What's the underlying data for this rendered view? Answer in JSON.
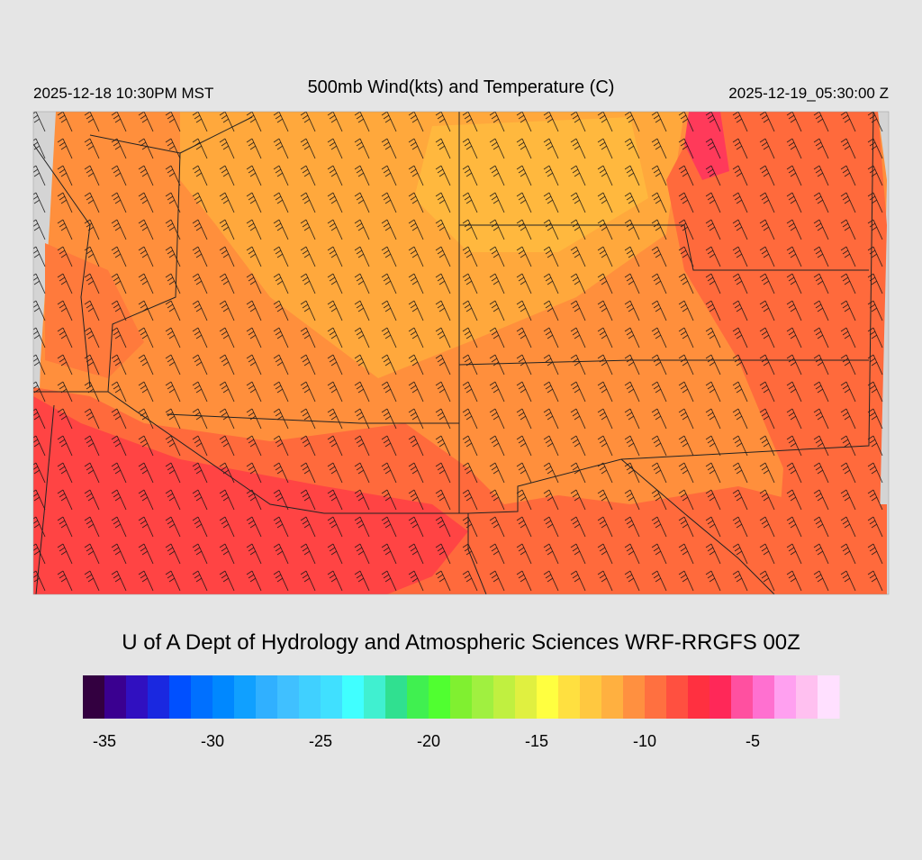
{
  "header": {
    "valid_local": "2025-12-18 10:30PM MST",
    "title": "500mb Wind(kts) and Temperature (C)",
    "valid_utc": "2025-12-19_05:30:00 Z"
  },
  "credit": "U of A Dept of Hydrology and Atmospheric Sciences WRF-RRGFS 00Z",
  "colorbar": {
    "lim": [
      -36,
      -1
    ],
    "ticks": [
      -35,
      -30,
      -25,
      -20,
      -15,
      -10,
      -5
    ],
    "colors": [
      "#330040",
      "#3a0090",
      "#3010c0",
      "#1a28e0",
      "#0050ff",
      "#0070ff",
      "#0088ff",
      "#10a0ff",
      "#30b0ff",
      "#40c0ff",
      "#40d0ff",
      "#40e0ff",
      "#40ffff",
      "#40f0d0",
      "#30e090",
      "#40f050",
      "#50ff30",
      "#80f030",
      "#a0f040",
      "#c0f040",
      "#e0f040",
      "#ffff40",
      "#ffe040",
      "#ffc840",
      "#ffb040",
      "#ff9040",
      "#ff7040",
      "#ff5040",
      "#ff3040",
      "#ff2858",
      "#ff50a0",
      "#ff70d0",
      "#ffa0f0",
      "#ffc0f0",
      "#ffe0ff"
    ]
  }
}
